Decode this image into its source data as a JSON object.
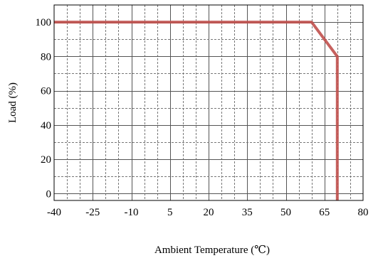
{
  "chart_data": {
    "type": "line",
    "xlabel": "Ambient Temperature (℃)",
    "ylabel": "Load (%)",
    "xlim": [
      -40,
      80
    ],
    "ylim": [
      -4,
      110
    ],
    "x_ticks": [
      -40,
      -25,
      -10,
      5,
      20,
      35,
      50,
      65,
      80
    ],
    "x_tick_labels": [
      "-40",
      "-25",
      "-10",
      "5",
      "20",
      "35",
      "50",
      "65",
      "80"
    ],
    "y_ticks": [
      0,
      20,
      40,
      60,
      80,
      100
    ],
    "y_tick_labels": [
      "0",
      "20",
      "40",
      "60",
      "80",
      "100"
    ],
    "grid": true,
    "series": [
      {
        "x": [
          -40,
          60,
          70,
          70
        ],
        "y": [
          100,
          100,
          80,
          -4
        ],
        "color": "#c0504d"
      }
    ]
  }
}
